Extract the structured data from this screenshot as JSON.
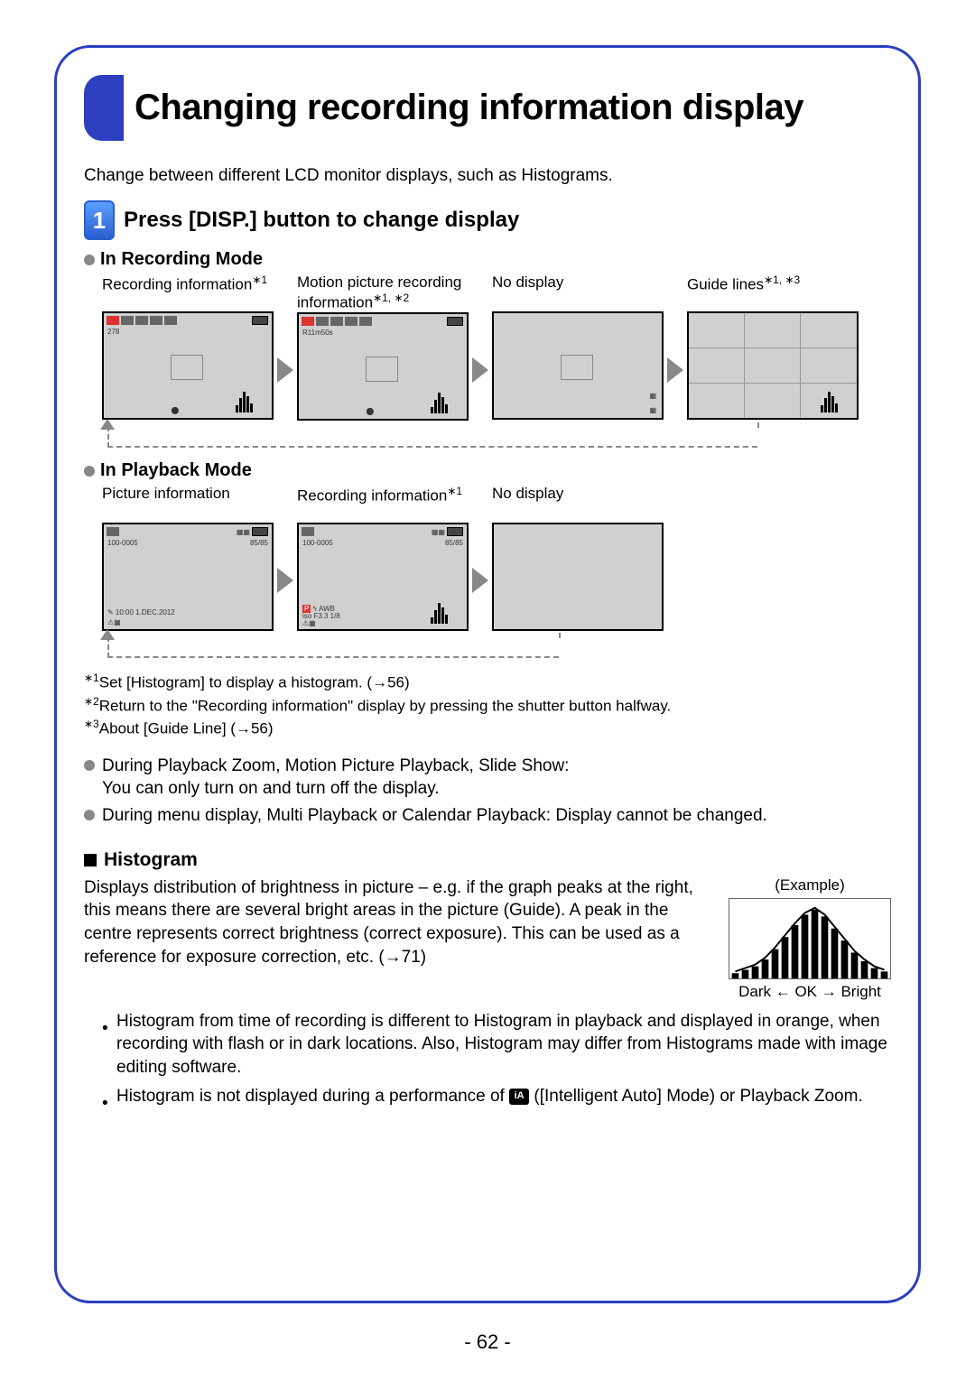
{
  "page": {
    "title": "Changing recording information display",
    "intro": "Change between different LCD monitor displays, such as Histograms.",
    "page_number": "- 62 -"
  },
  "step": {
    "number": "1",
    "title": "Press [DISP.] button to change display"
  },
  "recording_mode": {
    "heading": "In Recording Mode",
    "screens": [
      {
        "label_pre": "Recording information",
        "sup": "∗1"
      },
      {
        "label_pre": "Motion picture recording information",
        "sup": "∗1, ∗2"
      },
      {
        "label_pre": "No display",
        "sup": ""
      },
      {
        "label_pre": "Guide lines",
        "sup": "∗1, ∗3"
      }
    ]
  },
  "playback_mode": {
    "heading": "In Playback Mode",
    "screens": [
      {
        "label_pre": "Picture information",
        "sup": ""
      },
      {
        "label_pre": "Recording information",
        "sup": "∗1"
      },
      {
        "label_pre": "No display",
        "sup": ""
      }
    ]
  },
  "footnotes": {
    "f1": "Set [Histogram] to display a histogram. (→56)",
    "f2": "Return to the \"Recording information\" display by pressing the shutter button halfway.",
    "f3": "About [Guide Line] (→56)"
  },
  "notes": {
    "n1": "During Playback Zoom, Motion Picture Playback, Slide Show:\nYou can only turn on and turn off the display.",
    "n2": "During menu display, Multi Playback or Calendar Playback: Display cannot be changed."
  },
  "histogram": {
    "heading": "Histogram",
    "body": "Displays distribution of brightness in picture – e.g. if the graph peaks at the right, this means there are several bright areas in the picture (Guide). A peak in the centre represents correct brightness (correct exposure). This can be used as a reference for exposure correction, etc. (→71)",
    "example_label": "(Example)",
    "axis_label": "Dark ← OK → Bright",
    "bullets": {
      "b1": "Histogram from time of recording is different to Histogram in playback and displayed in orange, when recording with flash or in dark locations. Also, Histogram may differ from Histograms made with image editing software.",
      "b2_pre": "Histogram is not displayed during a performance of ",
      "b2_post": " ([Intelligent Auto] Mode) or Playback Zoom."
    },
    "example_bars": [
      6,
      10,
      14,
      22,
      34,
      48,
      62,
      74,
      80,
      72,
      58,
      44,
      30,
      20,
      12,
      8
    ],
    "curve_color": "#000000",
    "bar_color": "#000000"
  },
  "colors": {
    "frame": "#2b3fbf",
    "step_bg_top": "#5aa0ff",
    "step_bg_bottom": "#2b5fd0",
    "arrow": "#888888",
    "lcd_bg": "#d0d0d0"
  }
}
